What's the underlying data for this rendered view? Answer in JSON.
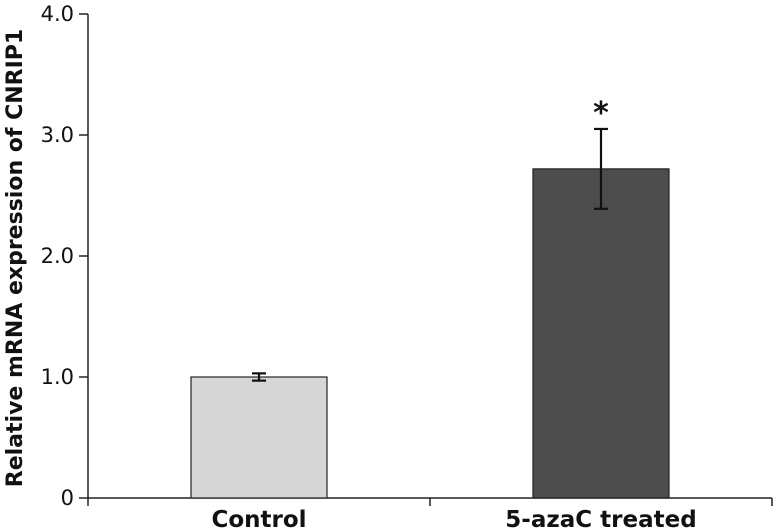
{
  "chart_data": {
    "type": "bar",
    "title": "",
    "xlabel": "",
    "ylabel": "Relative mRNA expression of CNRIP1",
    "categories": [
      "Control",
      "5-azaC treated"
    ],
    "values": [
      1.0,
      2.72
    ],
    "errors": [
      0.03,
      0.33
    ],
    "ylim": [
      0,
      4.0
    ],
    "yticks": [
      0,
      1.0,
      2.0,
      3.0,
      4.0
    ],
    "ytick_labels": [
      "0",
      "1.0",
      "2.0",
      "3.0",
      "4.0"
    ],
    "annotations": [
      {
        "category": "5-azaC treated",
        "text": "*"
      }
    ],
    "bar_colors": [
      "#d6d6d6",
      "#4d4d4d"
    ],
    "grid": false,
    "legend": "none"
  }
}
